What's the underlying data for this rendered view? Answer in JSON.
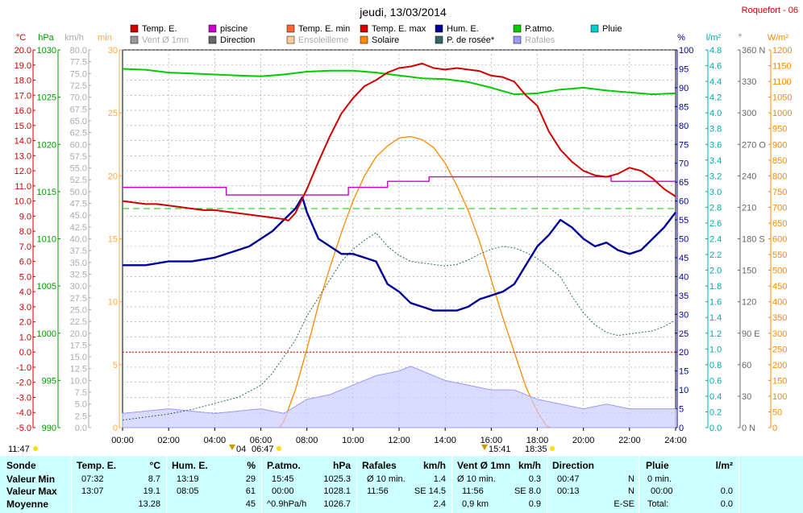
{
  "page": {
    "title": "jeudi, 13/03/2014",
    "station": "Roquefort - 06"
  },
  "legend": [
    {
      "label": "Temp. E.",
      "color": "#cc0000",
      "bright": true
    },
    {
      "label": "piscine",
      "color": "#cc00cc",
      "bright": true
    },
    {
      "label": "Temp. E. min",
      "color": "#ff6633",
      "bright": true
    },
    {
      "label": "Temp. E. max",
      "color": "#dd0000",
      "bright": true
    },
    {
      "label": "Hum. E.",
      "color": "#000099",
      "bright": true
    },
    {
      "label": "P.atmo.",
      "color": "#00cc00",
      "bright": true
    },
    {
      "label": "Pluie",
      "color": "#00cccc",
      "bright": true
    },
    {
      "label": "Vent Ø 1mn",
      "color": "#999999",
      "bright": false
    },
    {
      "label": "Direction",
      "color": "#666666",
      "bright": true
    },
    {
      "label": "Ensoleilleme",
      "color": "#ffcc99",
      "bright": false
    },
    {
      "label": "Solaire",
      "color": "#ff8800",
      "bright": true
    },
    {
      "label": "P. de rosée*",
      "color": "#336666",
      "bright": true
    },
    {
      "label": "Rafales",
      "color": "#9999ff",
      "bright": false
    }
  ],
  "axes": {
    "temp": {
      "unit": "°C",
      "ticks": [
        "20.0",
        "19.0",
        "18.0",
        "17.0",
        "16.0",
        "15.0",
        "14.0",
        "13.0",
        "12.0",
        "11.0",
        "10.0",
        "9.0",
        "8.0",
        "7.0",
        "6.0",
        "5.0",
        "4.0",
        "3.0",
        "2.0",
        "1.0",
        "0.0",
        "-1.0",
        "-2.0",
        "-3.0",
        "-4.0",
        "-5.0"
      ]
    },
    "press": {
      "unit": "hPa",
      "ticks": [
        {
          "v": "1030",
          "t": 0
        },
        {
          "v": "1025",
          "t": 5
        },
        {
          "v": "1020",
          "t": 10
        },
        {
          "v": "1015",
          "t": 15
        },
        {
          "v": "1010",
          "t": 20
        },
        {
          "v": "1005",
          "t": 25
        },
        {
          "v": "1000",
          "t": 30
        },
        {
          "v": "995",
          "t": 35
        },
        {
          "v": "990",
          "t": 40
        }
      ]
    },
    "wind": {
      "unit": "km/h",
      "ticks": [
        "80.0",
        "77.5",
        "75.0",
        "72.5",
        "70.0",
        "67.5",
        "65.0",
        "62.5",
        "60.0",
        "57.5",
        "55.0",
        "52.5",
        "50.0",
        "47.5",
        "45.0",
        "42.5",
        "40.0",
        "37.5",
        "35.0",
        "32.5",
        "30.0",
        "27.5",
        "25.0",
        "22.5",
        "20.0",
        "17.5",
        "15.0",
        "12.5",
        "10.0",
        "7.5",
        "5.0",
        "2.5",
        "0.0"
      ]
    },
    "min": {
      "unit": "min",
      "ticks": [
        "30",
        "25",
        "20",
        "15",
        "10",
        "5",
        "0"
      ]
    },
    "hum": {
      "unit": "%",
      "ticks": [
        "100",
        "95",
        "90",
        "85",
        "80",
        "75",
        "70",
        "65",
        "60",
        "55",
        "50",
        "45",
        "40",
        "35",
        "30",
        "25",
        "20",
        "15",
        "10",
        "5",
        "0"
      ]
    },
    "rain": {
      "unit": "l/m²",
      "ticks": [
        "4.8",
        "4.6",
        "4.4",
        "4.2",
        "4.0",
        "3.8",
        "3.6",
        "3.4",
        "3.2",
        "3.0",
        "2.8",
        "2.6",
        "2.4",
        "2.2",
        "2.0",
        "1.8",
        "1.6",
        "1.4",
        "1.2",
        "1.0",
        "0.8",
        "0.6",
        "0.4",
        "0.2",
        "0.0"
      ]
    },
    "dir": {
      "unit": "°",
      "ticks": [
        {
          "v": "360 N",
          "f": 1
        },
        {
          "v": "330",
          "f": 0.9167
        },
        {
          "v": "300",
          "f": 0.8333
        },
        {
          "v": "270 O",
          "f": 0.75
        },
        {
          "v": "240",
          "f": 0.6667
        },
        {
          "v": "210",
          "f": 0.5833
        },
        {
          "v": "180 S",
          "f": 0.5
        },
        {
          "v": "150",
          "f": 0.4167
        },
        {
          "v": "120",
          "f": 0.3333
        },
        {
          "v": "90 E",
          "f": 0.25
        },
        {
          "v": "60",
          "f": 0.1667
        },
        {
          "v": "30",
          "f": 0.0833
        },
        {
          "v": "0 N",
          "f": 0
        }
      ]
    },
    "solar": {
      "unit": "W/m²",
      "ticks": [
        "1200",
        "1150",
        "1100",
        "1050",
        "1000",
        "950",
        "900",
        "850",
        "800",
        "750",
        "700",
        "650",
        "600",
        "550",
        "500",
        "450",
        "400",
        "350",
        "300",
        "250",
        "200",
        "150",
        "100",
        "50",
        "0"
      ]
    },
    "time": [
      "00:00",
      "02:00",
      "04:00",
      "06:00",
      "08:00",
      "10:00",
      "12:00",
      "14:00",
      "16:00",
      "18:00",
      "20:00",
      "22:00",
      "24:00"
    ]
  },
  "markers": {
    "moonset": "11:47",
    "moonrise": "04",
    "sunrise": "06:47",
    "solar_noon": "15:41",
    "sunset": "18:35"
  },
  "chart_data": {
    "type": "line",
    "title": "jeudi, 13/03/2014",
    "x_unit": "hour",
    "xlim": [
      0,
      24
    ],
    "series": [
      {
        "name": "Temp. E.",
        "color": "#cc0000",
        "axis": "°C",
        "ylim": [
          -5,
          20
        ],
        "x": [
          0,
          0.5,
          1,
          1.5,
          2,
          2.5,
          3,
          3.5,
          4,
          4.5,
          5,
          5.5,
          6,
          6.5,
          7,
          7.2,
          7.5,
          8,
          8.5,
          9,
          9.5,
          10,
          10.5,
          11,
          11.5,
          12,
          12.5,
          13,
          13.5,
          14,
          14.5,
          15,
          15.5,
          16,
          16.5,
          17,
          17.5,
          18,
          18.5,
          19,
          19.5,
          20,
          20.5,
          21,
          21.5,
          22,
          22.5,
          23,
          23.5,
          24
        ],
        "y": [
          10.0,
          9.9,
          9.8,
          9.8,
          9.7,
          9.6,
          9.5,
          9.4,
          9.4,
          9.3,
          9.2,
          9.1,
          9.0,
          8.9,
          8.8,
          8.7,
          9.2,
          10.8,
          12.6,
          14.3,
          15.8,
          16.8,
          17.6,
          18.0,
          18.5,
          18.8,
          18.9,
          19.1,
          18.8,
          18.7,
          18.8,
          18.7,
          18.6,
          18.3,
          18.2,
          17.9,
          17.0,
          16.3,
          14.6,
          13.4,
          12.6,
          12.0,
          11.7,
          11.6,
          11.8,
          12.2,
          12.0,
          11.5,
          10.8,
          10.3
        ]
      },
      {
        "name": "piscine",
        "color": "#cc00cc",
        "axis": "°C",
        "ylim": [
          -5,
          20
        ],
        "x": [
          0,
          4.5,
          4.5,
          9.8,
          9.8,
          11.5,
          11.5,
          13.3,
          13.3,
          21.2,
          21.2,
          24
        ],
        "y": [
          10.9,
          10.9,
          10.4,
          10.4,
          10.9,
          10.9,
          11.3,
          11.3,
          11.6,
          11.6,
          11.3,
          11.3
        ]
      },
      {
        "name": "Hum. E.",
        "color": "#000099",
        "axis": "%",
        "ylim": [
          0,
          100
        ],
        "x": [
          0,
          1,
          2,
          2.5,
          3,
          4,
          5,
          5.5,
          6,
          6.5,
          7,
          7.5,
          7.8,
          8,
          8.5,
          9,
          9.5,
          10,
          10.5,
          11,
          11.5,
          12,
          12.5,
          13,
          13.5,
          14,
          14.5,
          15,
          15.5,
          16,
          16.5,
          17,
          17.5,
          18,
          18.5,
          19,
          19.5,
          20,
          20.5,
          21,
          21.5,
          22,
          22.5,
          23,
          23.5,
          24
        ],
        "y": [
          43,
          43,
          44,
          44,
          44,
          45,
          47,
          48,
          50,
          52,
          55,
          58,
          61,
          57,
          50,
          48,
          46,
          46,
          45,
          44,
          38,
          36,
          33,
          32,
          31,
          31,
          31,
          32,
          34,
          35,
          36,
          38,
          43,
          48,
          51,
          55,
          53,
          50,
          48,
          49,
          47,
          46,
          47,
          50,
          53,
          57
        ]
      },
      {
        "name": "P.atmo.",
        "color": "#00cc00",
        "axis": "hPa",
        "ylim": [
          990,
          1030
        ],
        "x": [
          0,
          1,
          2,
          3,
          4,
          5,
          6,
          7,
          8,
          9,
          10,
          11,
          12,
          13,
          14,
          15,
          16,
          17,
          18,
          19,
          20,
          21,
          22,
          23,
          24
        ],
        "y": [
          1028.0,
          1027.9,
          1027.6,
          1027.5,
          1027.4,
          1027.3,
          1027.2,
          1027.4,
          1027.7,
          1027.8,
          1027.8,
          1027.6,
          1027.3,
          1027.0,
          1026.9,
          1026.6,
          1026.0,
          1025.3,
          1025.4,
          1025.8,
          1026.0,
          1025.7,
          1025.5,
          1025.3,
          1025.4
        ]
      },
      {
        "name": "P. de rosée*",
        "color": "#336666",
        "axis": "°C",
        "ylim": [
          -5,
          20
        ],
        "x": [
          0,
          1,
          2,
          3,
          4,
          5,
          6,
          6.5,
          7,
          7.5,
          8,
          8.5,
          9,
          9.5,
          10,
          10.5,
          11,
          11.5,
          12,
          12.5,
          13,
          13.5,
          14,
          14.5,
          15,
          15.5,
          16,
          16.5,
          17,
          17.5,
          18,
          18.5,
          19,
          19.5,
          20,
          20.5,
          21,
          21.5,
          22,
          22.5,
          23,
          23.5,
          24
        ],
        "y": [
          -4.5,
          -4.3,
          -4.1,
          -3.8,
          -3.4,
          -3.0,
          -2.2,
          -1.4,
          -0.3,
          0.8,
          2.4,
          3.6,
          4.8,
          6.0,
          6.8,
          7.4,
          7.9,
          7.0,
          6.4,
          6.0,
          5.9,
          5.8,
          5.7,
          5.8,
          6.1,
          6.5,
          6.8,
          7.0,
          6.9,
          6.6,
          6.2,
          5.6,
          5.0,
          3.7,
          2.6,
          1.8,
          1.3,
          1.1,
          1.2,
          1.3,
          1.4,
          1.7,
          2.1
        ]
      },
      {
        "name": "Solaire",
        "color": "#ff8800",
        "axis": "W/m²",
        "ylim": [
          0,
          1200
        ],
        "x": [
          6.8,
          7,
          7.5,
          8,
          8.5,
          9,
          9.5,
          10,
          10.5,
          11,
          11.5,
          12,
          12.5,
          13,
          13.5,
          14,
          14.5,
          15,
          15.5,
          16,
          16.5,
          17,
          17.5,
          18,
          18.4,
          18.6
        ],
        "y": [
          0,
          20,
          120,
          250,
          390,
          510,
          620,
          720,
          800,
          860,
          895,
          920,
          925,
          915,
          890,
          840,
          770,
          690,
          590,
          470,
          350,
          240,
          130,
          50,
          5,
          0
        ]
      },
      {
        "name": "Rafales",
        "color": "#9999ff",
        "axis": "km/h",
        "ylim": [
          0,
          80
        ],
        "x": [
          0,
          2,
          4,
          6,
          7,
          8,
          9,
          10,
          11,
          12,
          12.5,
          13,
          14,
          15,
          16,
          17,
          18,
          19,
          20,
          21,
          22,
          23,
          24
        ],
        "y": [
          3,
          4,
          3,
          4,
          3,
          6,
          7,
          9,
          11,
          12,
          13,
          12,
          10,
          9,
          8,
          8,
          6,
          5,
          4,
          5,
          4,
          4,
          4
        ]
      }
    ],
    "reference_lines": [
      {
        "name": "0 °C",
        "color": "#cc0000",
        "axis": "°C",
        "y": 0
      },
      {
        "name": "green dashed",
        "color": "#00cc00",
        "axis": "°C",
        "y": 9.5
      }
    ],
    "grid": true
  },
  "summary": {
    "sonde": {
      "header": "Sonde",
      "rows": [
        "Valeur Min",
        "Valeur Max",
        "Moyenne"
      ]
    },
    "temp": {
      "header": "Temp. E.",
      "unit": "°C",
      "min_t": "07:32",
      "min_v": "8.7",
      "max_t": "13:07",
      "max_v": "19.1",
      "avg": "13.28"
    },
    "hum": {
      "header": "Hum. E.",
      "unit": "%",
      "min_t": "13:19",
      "min_v": "29",
      "max_t": "08:05",
      "max_v": "61",
      "avg": "45"
    },
    "press": {
      "header": "P.atmo.",
      "unit": "hPa",
      "min_t": "15:45",
      "min_v": "1025.3",
      "max_t": "00:00",
      "max_v": "1028.1",
      "avg_l": "^0.9hPa/h",
      "avg": "1026.7"
    },
    "gust": {
      "header": "Rafales",
      "unit": "km/h",
      "r1_l": "Ø 10 min.",
      "r1_v": "1.4",
      "r2_t": "11:56",
      "r2_v": "SE 14.5",
      "avg": "2.4"
    },
    "wind": {
      "header": "Vent Ø 1mn",
      "unit": "km/h",
      "r1_l": "Ø 10 min.",
      "r1_v": "0.3",
      "r2_t": "11:56",
      "r2_v": "SE 8.0",
      "r3_l": "0,9 km",
      "r3_v": "0.9"
    },
    "dir": {
      "header": "Direction",
      "r1_t": "00:47",
      "r1_v": "N",
      "r2_t": "00:13",
      "r2_v": "N",
      "r3_v": "E-SE"
    },
    "rain": {
      "header": "Pluie",
      "unit": "l/m²",
      "r1_l": "0 min.",
      "r2_t": "00:00",
      "r2_v": "0.0",
      "r3_l": "Total:",
      "r3_v": "0.0"
    }
  }
}
